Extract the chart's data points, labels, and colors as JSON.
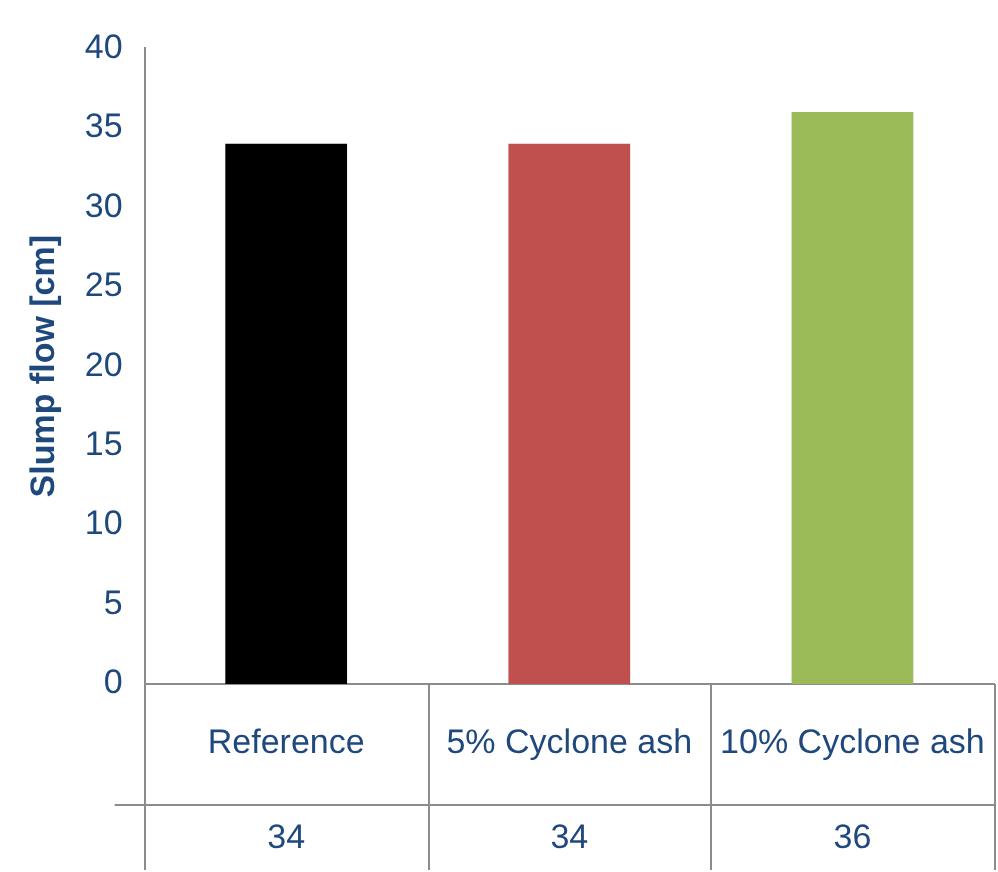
{
  "chart_data": {
    "type": "bar",
    "ylabel": "Slump flow [cm]",
    "categories": [
      "Reference",
      "5% Cyclone ash",
      "10% Cyclone ash"
    ],
    "values": [
      34,
      34,
      36
    ],
    "colors": [
      "#000000",
      "#c0504d",
      "#9bbb59"
    ],
    "ylim": [
      0,
      40
    ],
    "yticks": [
      0,
      5,
      10,
      15,
      20,
      25,
      30,
      35,
      40
    ],
    "grid": false,
    "legend": false,
    "data_labels": true
  }
}
